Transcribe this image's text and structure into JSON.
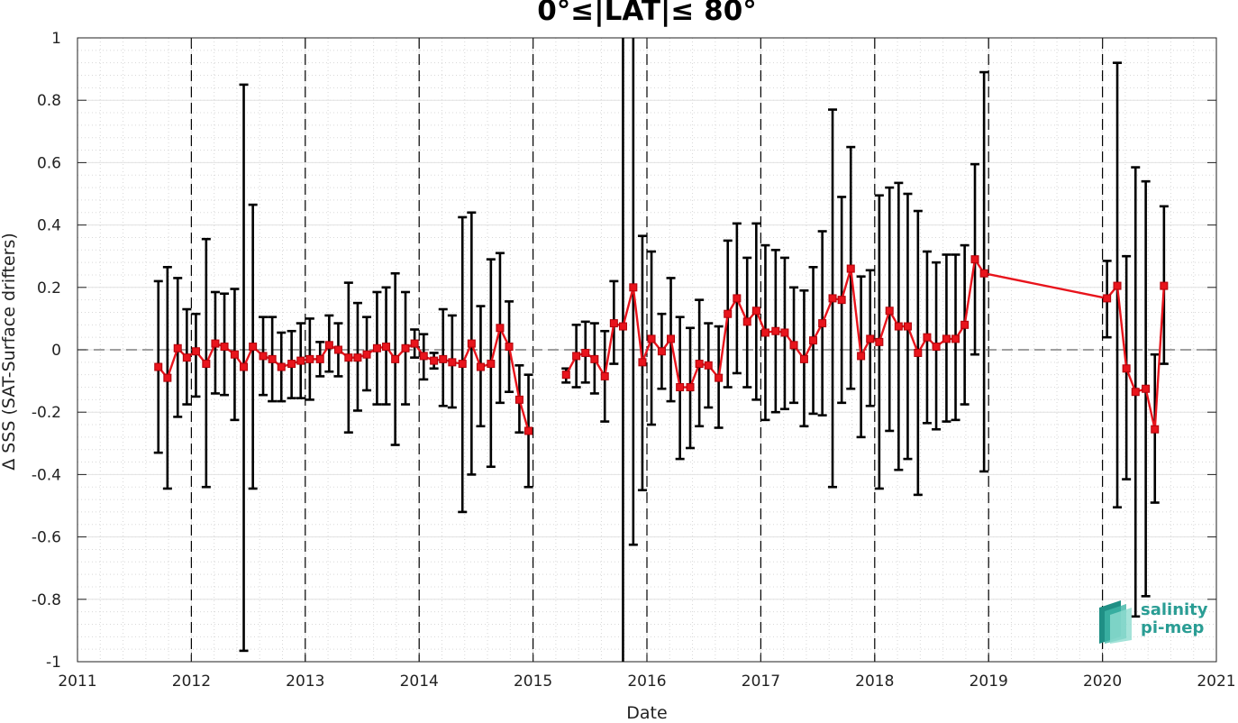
{
  "chart_data": {
    "type": "line",
    "title": "0°≤|LAT|≤ 80°",
    "xlabel": "Date",
    "ylabel": "Δ SSS (SAT-Surface drifters)",
    "xlim": [
      2011,
      2021
    ],
    "ylim": [
      -1,
      1
    ],
    "xticks": [
      "2011",
      "2012",
      "2013",
      "2014",
      "2015",
      "2016",
      "2017",
      "2018",
      "2019",
      "2020",
      "2021"
    ],
    "yticks": [
      "1",
      "0.8",
      "0.6",
      "0.4",
      "0.2",
      "0",
      "-0.2",
      "-0.4",
      "-0.6",
      "-0.8",
      "-1"
    ],
    "grid": true,
    "reference_line": 0,
    "year_dividers": [
      2012,
      2013,
      2014,
      2015,
      2016,
      2017,
      2018,
      2019,
      2020
    ],
    "series": [
      {
        "color": "#e8141c",
        "segments": [
          [
            [
              2011.71,
              -0.055,
              0.22,
              -0.33
            ],
            [
              2011.79,
              -0.09,
              0.265,
              -0.445
            ],
            [
              2011.88,
              0.005,
              0.23,
              -0.215
            ],
            [
              2011.96,
              -0.025,
              0.13,
              -0.175
            ],
            [
              2012.04,
              -0.005,
              0.115,
              -0.15
            ],
            [
              2012.13,
              -0.045,
              0.355,
              -0.44
            ],
            [
              2012.21,
              0.02,
              0.185,
              -0.14
            ],
            [
              2012.29,
              0.01,
              0.18,
              -0.145
            ],
            [
              2012.38,
              -0.015,
              0.195,
              -0.225
            ],
            [
              2012.46,
              -0.055,
              0.85,
              -0.965
            ],
            [
              2012.54,
              0.01,
              0.465,
              -0.445
            ],
            [
              2012.63,
              -0.02,
              0.105,
              -0.145
            ],
            [
              2012.71,
              -0.03,
              0.105,
              -0.165
            ],
            [
              2012.79,
              -0.055,
              0.055,
              -0.165
            ],
            [
              2012.88,
              -0.045,
              0.06,
              -0.155
            ],
            [
              2012.96,
              -0.035,
              0.085,
              -0.155
            ],
            [
              2013.04,
              -0.03,
              0.1,
              -0.16
            ],
            [
              2013.13,
              -0.03,
              0.025,
              -0.085
            ],
            [
              2013.21,
              0.015,
              0.11,
              -0.07
            ],
            [
              2013.29,
              0.0,
              0.085,
              -0.085
            ],
            [
              2013.38,
              -0.025,
              0.215,
              -0.265
            ],
            [
              2013.46,
              -0.025,
              0.15,
              -0.195
            ],
            [
              2013.54,
              -0.015,
              0.105,
              -0.13
            ],
            [
              2013.63,
              0.005,
              0.185,
              -0.175
            ],
            [
              2013.71,
              0.01,
              0.2,
              -0.175
            ],
            [
              2013.79,
              -0.03,
              0.245,
              -0.305
            ],
            [
              2013.88,
              0.005,
              0.185,
              -0.175
            ],
            [
              2013.96,
              0.02,
              0.065,
              -0.025
            ],
            [
              2014.04,
              -0.02,
              0.05,
              -0.095
            ],
            [
              2014.13,
              -0.035,
              -0.01,
              -0.06
            ],
            [
              2014.21,
              -0.03,
              0.13,
              -0.18
            ],
            [
              2014.29,
              -0.04,
              0.11,
              -0.185
            ],
            [
              2014.38,
              -0.045,
              0.425,
              -0.52
            ],
            [
              2014.46,
              0.02,
              0.44,
              -0.4
            ],
            [
              2014.54,
              -0.055,
              0.14,
              -0.245
            ],
            [
              2014.63,
              -0.045,
              0.29,
              -0.375
            ],
            [
              2014.71,
              0.07,
              0.31,
              -0.17
            ],
            [
              2014.79,
              0.01,
              0.155,
              -0.135
            ],
            [
              2014.88,
              -0.16,
              -0.05,
              -0.265
            ],
            [
              2014.96,
              -0.26,
              -0.08,
              -0.44
            ]
          ],
          [
            [
              2015.29,
              -0.08,
              -0.06,
              -0.105
            ],
            [
              2015.38,
              -0.02,
              0.08,
              -0.12
            ],
            [
              2015.46,
              -0.01,
              0.09,
              -0.105
            ],
            [
              2015.54,
              -0.03,
              0.085,
              -0.14
            ],
            [
              2015.63,
              -0.085,
              0.06,
              -0.23
            ],
            [
              2015.71,
              0.085,
              0.22,
              -0.045
            ],
            [
              2015.79,
              0.075,
              1.0,
              -1.0
            ],
            [
              2015.88,
              0.2,
              1.0,
              -0.625
            ],
            [
              2015.96,
              -0.04,
              0.365,
              -0.45
            ],
            [
              2016.04,
              0.035,
              0.315,
              -0.24
            ],
            [
              2016.13,
              -0.005,
              0.115,
              -0.125
            ],
            [
              2016.21,
              0.035,
              0.23,
              -0.165
            ],
            [
              2016.29,
              -0.12,
              0.105,
              -0.35
            ],
            [
              2016.38,
              -0.12,
              0.07,
              -0.315
            ],
            [
              2016.46,
              -0.045,
              0.16,
              -0.245
            ],
            [
              2016.54,
              -0.05,
              0.085,
              -0.185
            ],
            [
              2016.63,
              -0.09,
              0.075,
              -0.25
            ],
            [
              2016.71,
              0.115,
              0.35,
              -0.12
            ],
            [
              2016.79,
              0.165,
              0.405,
              -0.075
            ],
            [
              2016.88,
              0.09,
              0.295,
              -0.12
            ],
            [
              2016.96,
              0.125,
              0.405,
              -0.16
            ],
            [
              2017.04,
              0.055,
              0.335,
              -0.225
            ],
            [
              2017.13,
              0.06,
              0.32,
              -0.2
            ],
            [
              2017.21,
              0.055,
              0.295,
              -0.19
            ],
            [
              2017.29,
              0.015,
              0.2,
              -0.17
            ],
            [
              2017.38,
              -0.03,
              0.19,
              -0.245
            ],
            [
              2017.46,
              0.03,
              0.265,
              -0.205
            ],
            [
              2017.54,
              0.085,
              0.38,
              -0.21
            ],
            [
              2017.63,
              0.165,
              0.77,
              -0.44
            ],
            [
              2017.71,
              0.16,
              0.49,
              -0.17
            ],
            [
              2017.79,
              0.26,
              0.65,
              -0.125
            ],
            [
              2017.88,
              -0.02,
              0.235,
              -0.28
            ],
            [
              2017.96,
              0.035,
              0.255,
              -0.18
            ],
            [
              2018.04,
              0.025,
              0.495,
              -0.445
            ],
            [
              2018.13,
              0.125,
              0.52,
              -0.26
            ],
            [
              2018.21,
              0.075,
              0.535,
              -0.385
            ],
            [
              2018.29,
              0.075,
              0.5,
              -0.35
            ],
            [
              2018.38,
              -0.01,
              0.445,
              -0.465
            ],
            [
              2018.46,
              0.04,
              0.315,
              -0.235
            ],
            [
              2018.54,
              0.01,
              0.28,
              -0.255
            ],
            [
              2018.63,
              0.035,
              0.305,
              -0.23
            ],
            [
              2018.71,
              0.035,
              0.305,
              -0.225
            ],
            [
              2018.79,
              0.08,
              0.335,
              -0.175
            ],
            [
              2018.88,
              0.29,
              0.595,
              -0.015
            ],
            [
              2018.96,
              0.245,
              0.89,
              -0.39
            ],
            [
              2020.04,
              0.165,
              0.285,
              0.04
            ],
            [
              2020.13,
              0.205,
              0.92,
              -0.505
            ],
            [
              2020.21,
              -0.06,
              0.3,
              -0.415
            ],
            [
              2020.29,
              -0.135,
              0.585,
              -0.855
            ],
            [
              2020.38,
              -0.125,
              0.54,
              -0.79
            ],
            [
              2020.46,
              -0.255,
              -0.015,
              -0.49
            ],
            [
              2020.54,
              0.205,
              0.46,
              -0.045
            ]
          ]
        ]
      }
    ]
  },
  "logo": {
    "line1": "salinity",
    "line2": "pi-mep"
  }
}
